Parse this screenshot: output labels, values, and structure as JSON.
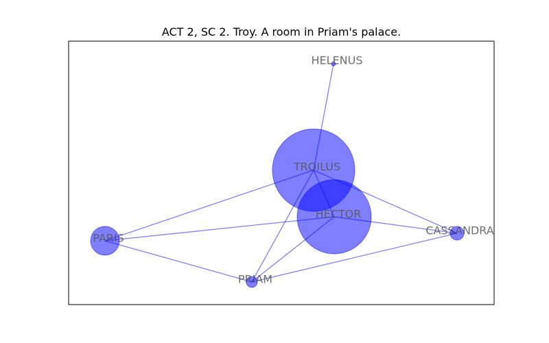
{
  "title": "ACT 2, SC 2. Troy. A room in Priam's palace.",
  "colors": {
    "node": "#0000ff",
    "edge": "#0000ff",
    "label": "#555555",
    "frame": "#000000",
    "background": "#ffffff"
  },
  "nodes": [
    {
      "id": "TROILUS",
      "label": "TROILUS",
      "size": 60
    },
    {
      "id": "HECTOR",
      "label": "HECTOR",
      "size": 54
    },
    {
      "id": "PARIS",
      "label": "PARIS",
      "size": 21
    },
    {
      "id": "CASSANDRA",
      "label": "CASSANDRA",
      "size": 10
    },
    {
      "id": "PRIAM",
      "label": "PRIAM",
      "size": 8
    },
    {
      "id": "HELENUS",
      "label": "HELENUS",
      "size": 3
    }
  ],
  "edges": [
    [
      "TROILUS",
      "HELENUS"
    ],
    [
      "TROILUS",
      "PARIS"
    ],
    [
      "TROILUS",
      "PRIAM"
    ],
    [
      "TROILUS",
      "CASSANDRA"
    ],
    [
      "TROILUS",
      "HECTOR"
    ],
    [
      "HECTOR",
      "PARIS"
    ],
    [
      "HECTOR",
      "PRIAM"
    ],
    [
      "HECTOR",
      "CASSANDRA"
    ],
    [
      "PARIS",
      "PRIAM"
    ],
    [
      "PRIAM",
      "CASSANDRA"
    ]
  ]
}
